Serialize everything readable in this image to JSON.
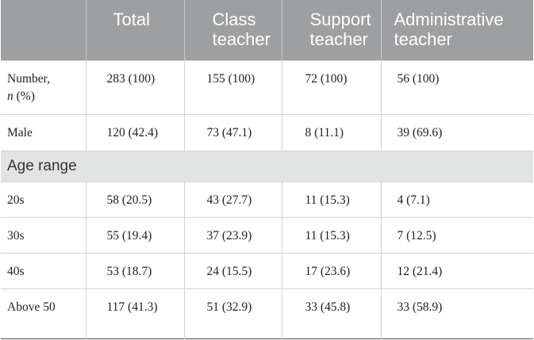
{
  "columns": [
    "",
    "Total",
    "Class teacher",
    "Support teacher",
    "Administrative teacher"
  ],
  "rows": [
    {
      "label": "Number,",
      "label_italic": "n",
      "label_suffix": " (%)",
      "cells": [
        "283 (100)",
        "155 (100)",
        "72 (100)",
        "56 (100)"
      ]
    },
    {
      "label": "Male",
      "cells": [
        "120 (42.4)",
        "73 (47.1)",
        "8 (11.1)",
        "39 (69.6)"
      ]
    }
  ],
  "section_label": "Age range",
  "age_rows": [
    {
      "label": "20s",
      "cells": [
        "58 (20.5)",
        "43 (27.7)",
        "11 (15.3)",
        "4 (7.1)"
      ]
    },
    {
      "label": "30s",
      "cells": [
        "55 (19.4)",
        "37 (23.9)",
        "11 (15.3)",
        "7 (12.5)"
      ]
    },
    {
      "label": "40s",
      "cells": [
        "53 (18.7)",
        "24 (15.5)",
        "17 (23.6)",
        "12 (21.4)"
      ]
    },
    {
      "label": "Above 50",
      "cells": [
        "117 (41.3)",
        "51 (32.9)",
        "33 (45.8)",
        "33 (58.9)"
      ]
    }
  ]
}
